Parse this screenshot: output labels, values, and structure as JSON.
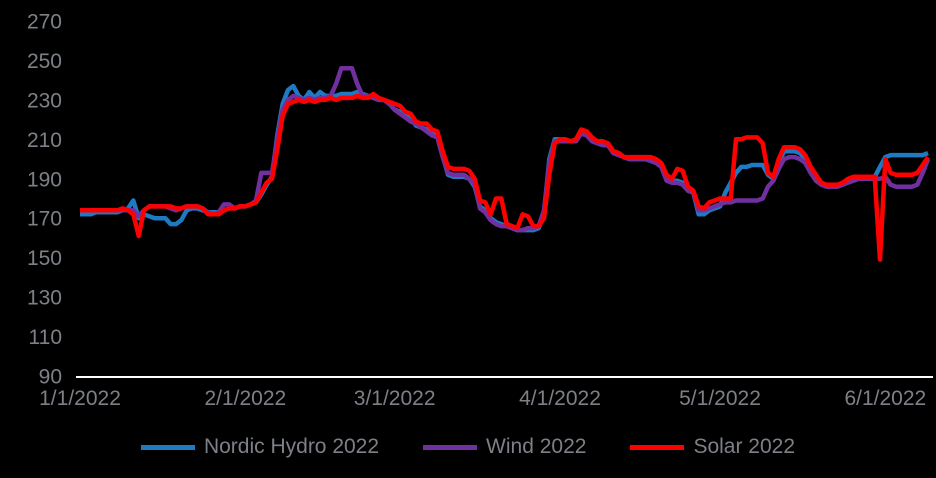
{
  "chart_data": {
    "type": "line",
    "title": "",
    "background_color": "#000000",
    "text_color": "#7d8187",
    "axis_line_color": "#ffffff",
    "grid": "off",
    "legend_position": "bottom",
    "x_axis": {
      "start_date": "1/1/2022",
      "end_date": "6/9/2022",
      "unit": "daily (day index from 1/1/2022)",
      "tick_labels": [
        "1/1/2022",
        "2/1/2022",
        "3/1/2022",
        "4/1/2022",
        "5/1/2022",
        "6/1/2022"
      ],
      "tick_day_indices": [
        0,
        31,
        59,
        90,
        120,
        151
      ]
    },
    "y_axis": {
      "min": 90,
      "max": 270,
      "step": 20,
      "tick_labels": [
        "90",
        "110",
        "130",
        "150",
        "170",
        "190",
        "210",
        "230",
        "250",
        "270"
      ]
    },
    "series": [
      {
        "name": "Nordic Hydro 2022",
        "color": "#1e7ac2",
        "values": [
          172,
          172,
          172,
          173,
          173,
          173,
          173,
          173,
          174,
          175,
          179,
          170,
          172,
          171,
          170,
          170,
          170,
          167,
          167,
          169,
          174,
          175,
          175,
          174,
          173,
          173,
          173,
          174,
          175,
          175,
          176,
          176,
          177,
          178,
          182,
          187,
          191,
          212,
          228,
          235,
          237,
          232,
          230,
          234,
          231,
          234,
          232,
          232,
          232,
          233,
          233,
          233,
          234,
          233,
          232,
          231,
          230,
          230,
          228,
          225,
          224,
          222,
          221,
          217,
          216,
          215,
          213,
          212,
          202,
          192,
          191,
          191,
          191,
          190,
          186,
          176,
          174,
          170,
          168,
          167,
          166,
          165,
          164,
          164,
          164,
          164,
          165,
          172,
          200,
          210,
          210,
          210,
          209,
          210,
          214,
          213,
          210,
          208,
          208,
          207,
          204,
          203,
          201,
          200,
          200,
          200,
          200,
          200,
          199,
          197,
          190,
          189,
          189,
          188,
          184,
          183,
          172,
          172,
          174,
          175,
          176,
          183,
          188,
          193,
          196,
          196,
          197,
          197,
          197,
          192,
          190,
          198,
          204,
          204,
          204,
          203,
          200,
          194,
          190,
          187,
          186,
          186,
          186,
          187,
          189,
          190,
          190,
          190,
          190,
          191,
          196,
          201,
          202,
          202,
          202,
          202,
          202,
          202,
          202,
          203
        ]
      },
      {
        "name": "Wind 2022",
        "color": "#7030a0",
        "values": [
          174,
          174,
          174,
          174,
          174,
          174,
          174,
          174,
          174,
          174,
          174,
          171,
          174,
          176,
          176,
          176,
          176,
          175,
          174,
          175,
          176,
          176,
          176,
          175,
          173,
          172,
          173,
          177,
          177,
          175,
          176,
          176,
          177,
          179,
          193,
          193,
          193,
          210,
          225,
          230,
          232,
          231,
          230,
          231,
          230,
          231,
          231,
          232,
          238,
          246,
          246,
          246,
          238,
          232,
          232,
          231,
          230,
          230,
          228,
          225,
          223,
          221,
          219,
          218,
          216,
          214,
          212,
          211,
          201,
          193,
          192,
          192,
          192,
          190,
          187,
          175,
          173,
          169,
          167,
          166,
          166,
          165,
          164,
          164,
          165,
          165,
          166,
          174,
          198,
          209,
          209,
          209,
          209,
          209,
          213,
          212,
          209,
          208,
          207,
          207,
          203,
          202,
          201,
          200,
          200,
          200,
          200,
          199,
          198,
          196,
          189,
          188,
          188,
          187,
          184,
          183,
          174,
          174,
          175,
          176,
          177,
          178,
          178,
          179,
          179,
          179,
          179,
          179,
          180,
          186,
          189,
          195,
          200,
          201,
          201,
          200,
          198,
          193,
          189,
          187,
          186,
          186,
          186,
          187,
          188,
          189,
          190,
          190,
          190,
          190,
          190,
          191,
          187,
          186,
          186,
          186,
          186,
          187,
          193,
          200
        ]
      },
      {
        "name": "Solar 2022",
        "color": "#fe0000",
        "values": [
          174,
          174,
          174,
          174,
          174,
          174,
          174,
          174,
          175,
          174,
          172,
          161,
          174,
          176,
          176,
          176,
          176,
          176,
          175,
          175,
          176,
          176,
          176,
          175,
          172,
          172,
          172,
          174,
          175,
          175,
          176,
          176,
          177,
          178,
          183,
          188,
          190,
          205,
          222,
          228,
          229,
          230,
          229,
          230,
          229,
          230,
          230,
          231,
          230,
          231,
          231,
          231,
          232,
          231,
          231,
          233,
          231,
          230,
          229,
          228,
          227,
          224,
          223,
          219,
          218,
          218,
          215,
          214,
          204,
          196,
          195,
          195,
          195,
          194,
          190,
          179,
          178,
          172,
          180,
          180,
          167,
          166,
          165,
          172,
          171,
          166,
          166,
          170,
          192,
          208,
          210,
          210,
          209,
          210,
          215,
          214,
          211,
          209,
          209,
          208,
          204,
          203,
          201,
          201,
          201,
          201,
          201,
          201,
          200,
          198,
          192,
          190,
          195,
          194,
          186,
          184,
          176,
          175,
          178,
          179,
          180,
          180,
          180,
          210,
          210,
          211,
          211,
          211,
          208,
          193,
          191,
          200,
          206,
          206,
          206,
          205,
          202,
          196,
          192,
          188,
          187,
          187,
          187,
          188,
          190,
          191,
          191,
          191,
          191,
          191,
          149,
          200,
          193,
          192,
          192,
          192,
          192,
          193,
          197,
          201
        ]
      }
    ]
  }
}
